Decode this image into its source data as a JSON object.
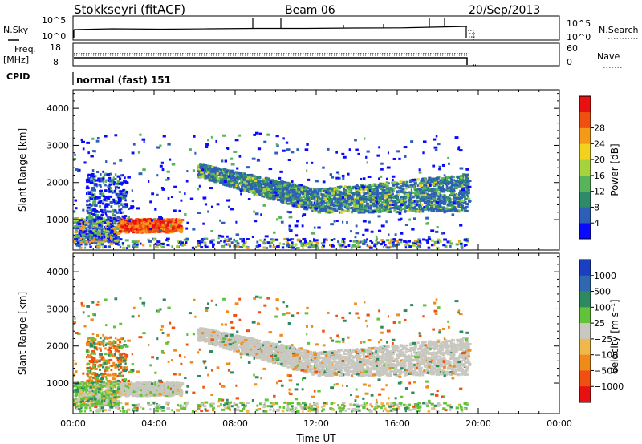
{
  "header": {
    "station": "Stokkseyri (fitACF)",
    "beam": "Beam 06",
    "date": "20/Sep/2013"
  },
  "panels": {
    "nsky": {
      "left_label": "N.Sky",
      "left_ticks": [
        "10^5",
        "10^0"
      ],
      "right_label": "N.Search",
      "right_ticks": [
        "10^5",
        "10^0"
      ]
    },
    "freq": {
      "left_label_1": "Freq.",
      "left_label_2": "[MHz]",
      "left_ticks": [
        "18",
        "8"
      ],
      "right_label": "Nave",
      "right_ticks": [
        "60",
        "0"
      ]
    },
    "cpid": {
      "label": "CPID",
      "mode": "normal (fast) 151"
    }
  },
  "chart_data": [
    {
      "type": "heatmap",
      "name": "power",
      "ylabel": "Slant Range [km]",
      "xlabel": "",
      "x_range_hours": [
        0,
        24
      ],
      "ylim": [
        180,
        4500
      ],
      "yticks": [
        1000,
        2000,
        3000,
        4000
      ],
      "colorbar": {
        "label": "Power [dB]",
        "ticks": [
          "4",
          "8",
          "12",
          "16",
          "20",
          "24",
          "28"
        ],
        "colors": [
          "#0a0aff",
          "#2d5fb8",
          "#2f8a6a",
          "#58b35a",
          "#a6d33c",
          "#f2d21c",
          "#f59a18",
          "#f0500f",
          "#e81010"
        ]
      },
      "echo_regions": [
        {
          "t": [
            0.0,
            1.8
          ],
          "r": [
            350,
            1000
          ],
          "v": "mixed"
        },
        {
          "t": [
            2.2,
            5.3
          ],
          "r": [
            600,
            1000
          ],
          "v": "high"
        },
        {
          "t": [
            6.1,
            19.5
          ],
          "r": [
            1200,
            2400
          ],
          "v": "mid"
        },
        {
          "t": [
            0.5,
            2.6
          ],
          "r": [
            1000,
            2200
          ],
          "v": "low"
        }
      ]
    },
    {
      "type": "heatmap",
      "name": "velocity",
      "ylabel": "Slant Range [km]",
      "xlabel": "Time UT",
      "x_range_hours": [
        0,
        24
      ],
      "xticks": [
        "00:00",
        "04:00",
        "08:00",
        "12:00",
        "16:00",
        "20:00",
        "00:00"
      ],
      "ylim": [
        180,
        4500
      ],
      "yticks": [
        1000,
        2000,
        3000,
        4000
      ],
      "colorbar": {
        "label": "Velocity [m s⁻¹]",
        "ticks": [
          "1000",
          "500",
          "100",
          "25",
          "−25",
          "−100",
          "−500",
          "−1000"
        ],
        "colors": [
          "#1a3fc0",
          "#2d68b0",
          "#2e8a5e",
          "#62c23a",
          "#c8c8c0",
          "#f0b84a",
          "#f08a1a",
          "#f0500f",
          "#e81010"
        ]
      }
    }
  ]
}
